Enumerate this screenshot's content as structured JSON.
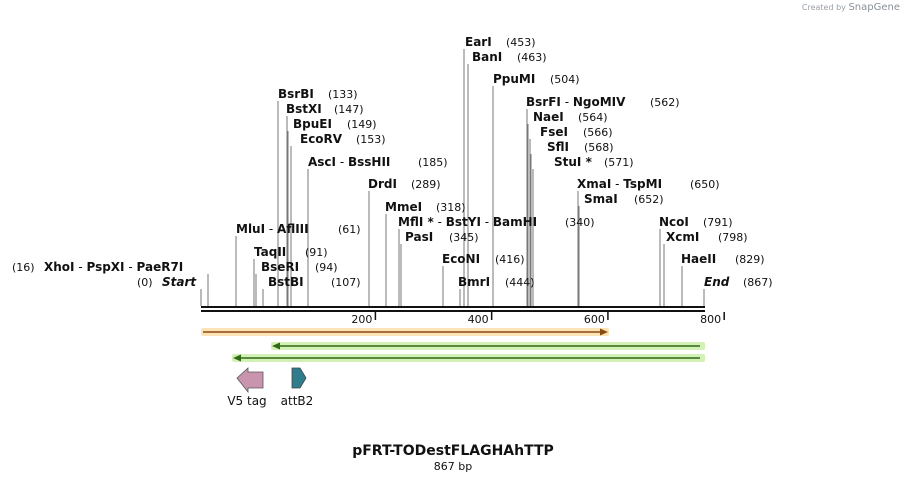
{
  "credit": {
    "prefix": "Created by",
    "brand": "SnapGene"
  },
  "map": {
    "title": "pFRT-TODestFLAGHAhTTP",
    "length_label": "867 bp",
    "ticks": [
      "200",
      "400",
      "600",
      "800"
    ],
    "sites": [
      {
        "names": [
          "EarI"
        ],
        "pos": "(453)"
      },
      {
        "names": [
          "BanI"
        ],
        "pos": "(463)"
      },
      {
        "names": [
          "PpuMI"
        ],
        "pos": "(504)"
      },
      {
        "names": [
          "BsrBI"
        ],
        "pos": "(133)"
      },
      {
        "names": [
          "BstXI"
        ],
        "pos": "(147)"
      },
      {
        "names": [
          "BpuEI"
        ],
        "pos": "(149)"
      },
      {
        "names": [
          "EcoRV"
        ],
        "pos": "(153)"
      },
      {
        "names": [
          "AscI",
          "BssHII"
        ],
        "pos": "(185)"
      },
      {
        "names": [
          "DrdI"
        ],
        "pos": "(289)"
      },
      {
        "names": [
          "MmeI"
        ],
        "pos": "(318)"
      },
      {
        "names": [
          "MflI *",
          "BstYI",
          "BamHI"
        ],
        "pos": "(340)"
      },
      {
        "names": [
          "PasI"
        ],
        "pos": "(345)"
      },
      {
        "names": [
          "EcoNI"
        ],
        "pos": "(416)"
      },
      {
        "names": [
          "BmrI"
        ],
        "pos": "(444)"
      },
      {
        "names": [
          "BsrFI",
          "NgoMIV"
        ],
        "pos": "(562)"
      },
      {
        "names": [
          "NaeI"
        ],
        "pos": "(564)"
      },
      {
        "names": [
          "FseI"
        ],
        "pos": "(566)"
      },
      {
        "names": [
          "SflI"
        ],
        "pos": "(568)"
      },
      {
        "names": [
          "StuI *"
        ],
        "pos": "(571)"
      },
      {
        "names": [
          "XmaI",
          "TspMI"
        ],
        "pos": "(650)"
      },
      {
        "names": [
          "SmaI"
        ],
        "pos": "(652)"
      },
      {
        "names": [
          "NcoI"
        ],
        "pos": "(791)"
      },
      {
        "names": [
          "XcmI"
        ],
        "pos": "(798)"
      },
      {
        "names": [
          "HaeII"
        ],
        "pos": "(829)"
      },
      {
        "names": [
          "MluI",
          "AflIII"
        ],
        "pos": "(61)"
      },
      {
        "names": [
          "TaqII"
        ],
        "pos": "(91)"
      },
      {
        "names": [
          "BseRI"
        ],
        "pos": "(94)"
      },
      {
        "names": [
          "BstBI"
        ],
        "pos": "(107)"
      },
      {
        "names": [
          "XhoI",
          "PspXI",
          "PaeR7I"
        ],
        "pos": "(16)"
      },
      {
        "names": [
          "Start"
        ],
        "pos": "(0)"
      },
      {
        "names": [
          "End"
        ],
        "pos": "(867)"
      }
    ],
    "features": [
      {
        "name": "V5 tag",
        "direction": "reverse",
        "color": "#c994ad"
      },
      {
        "name": "attB2",
        "direction": "forward",
        "color": "#2f7d8c"
      }
    ],
    "orfs": [
      {
        "direction": "forward",
        "color": "#e8a53a"
      },
      {
        "direction": "reverse",
        "color": "#5aa02c"
      },
      {
        "direction": "reverse",
        "color": "#5aa02c"
      }
    ]
  }
}
